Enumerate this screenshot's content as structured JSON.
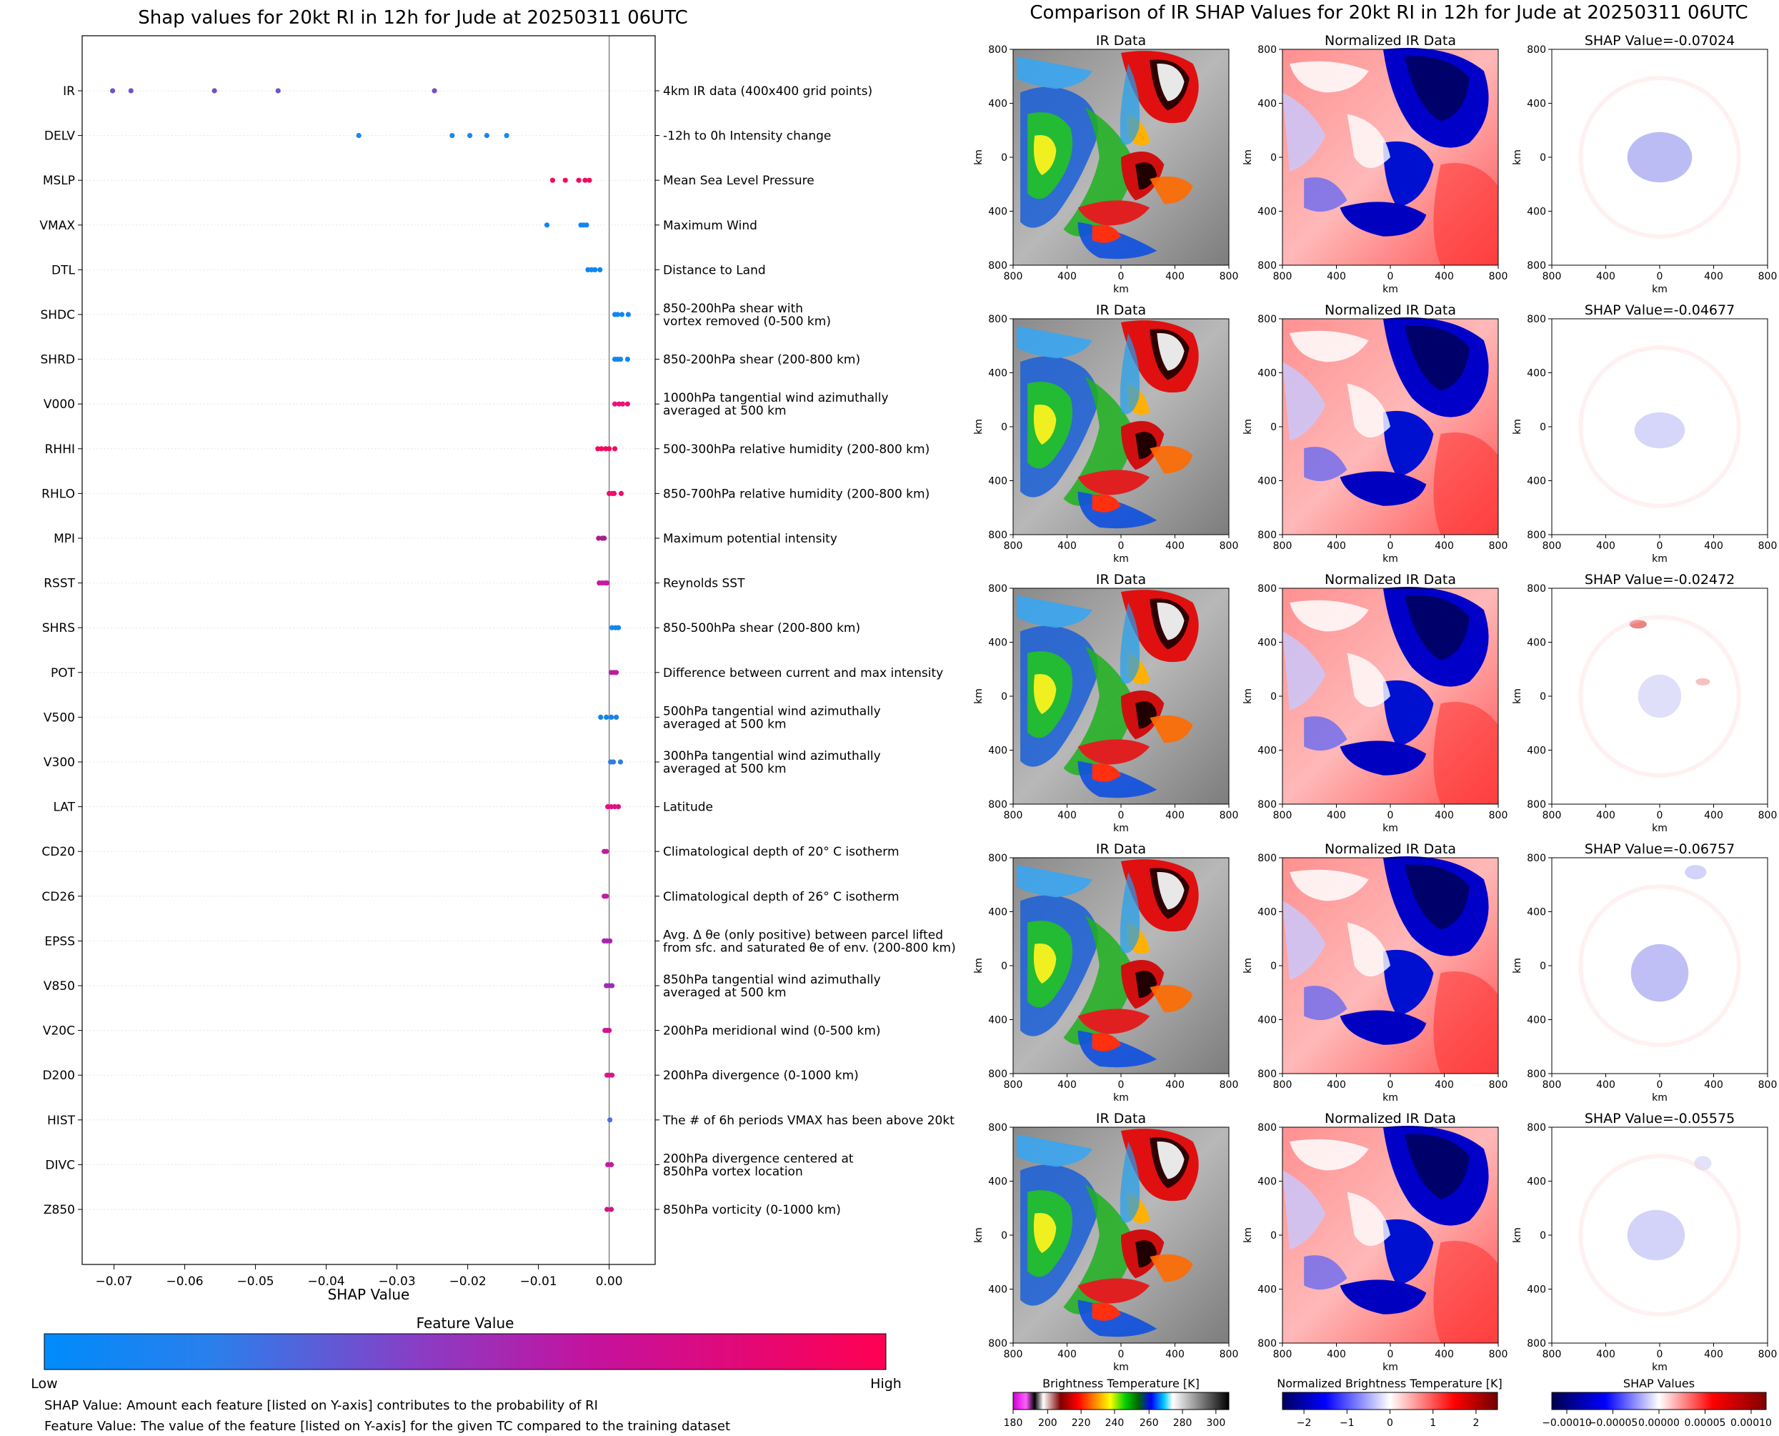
{
  "left_title": "Shap values for 20kt RI in 12h for Jude at 20250311 06UTC",
  "right_title": "Comparison of IR SHAP Values for 20kt RI in 12h for Jude at 20250311 06UTC",
  "colorbar": {
    "title": "Feature Value",
    "low_label": "Low",
    "high_label": "High",
    "low_color": "#008bfb",
    "high_color": "#ff0052"
  },
  "notes": [
    "SHAP Value: Amount each feature [listed on Y-axis] contributes to the probability of RI",
    "Feature Value: The value of the feature [listed on Y-axis] for the given TC compared to the training dataset"
  ],
  "panel_titles": [
    "IR Data",
    "Normalized IR Data"
  ],
  "panel_axis_label": "km",
  "panel_x_ticks": [
    "800",
    "400",
    "0",
    "400",
    "800"
  ],
  "panel_y_ticks": [
    "800",
    "400",
    "0",
    "400",
    "800"
  ],
  "shap_row_titles": [
    "SHAP Value=-0.07024",
    "SHAP Value=-0.04677",
    "SHAP Value=-0.02472",
    "SHAP Value=-0.06757",
    "SHAP Value=-0.05575"
  ],
  "bottom_colorbars": [
    {
      "title": "Brightness Temperature [K]",
      "ticks": [
        "180",
        "200",
        "220",
        "240",
        "260",
        "280",
        "300"
      ]
    },
    {
      "title": "Normalized Brightness Temperature [K]",
      "ticks": [
        "−2",
        "−1",
        "0",
        "1",
        "2"
      ]
    },
    {
      "title": "SHAP Values",
      "ticks": [
        "−0.00010",
        "−0.00005",
        "0.00000",
        "0.00005",
        "0.00010"
      ]
    }
  ],
  "chart_data": {
    "type": "scatter",
    "title": "Shap values for 20kt RI in 12h for Jude at 20250311 06UTC",
    "xlabel": "SHAP Value",
    "xlim": [
      -0.0745,
      0.0065
    ],
    "x_ticks": [
      "−0.07",
      "−0.06",
      "−0.05",
      "−0.04",
      "−0.03",
      "−0.02",
      "−0.01",
      "0.00"
    ],
    "x_tick_values": [
      -0.07,
      -0.06,
      -0.05,
      -0.04,
      -0.03,
      -0.02,
      -0.01,
      0.0
    ],
    "features": [
      {
        "name": "IR",
        "desc": [
          "4km IR data (400x400 grid points)"
        ],
        "values": [
          -0.0702,
          -0.0676,
          -0.0558,
          -0.0468,
          -0.0247
        ],
        "color": "#7250c8"
      },
      {
        "name": "DELV",
        "desc": [
          "-12h to 0h Intensity change"
        ],
        "values": [
          -0.0354,
          -0.0222,
          -0.0197,
          -0.0173,
          -0.0145
        ],
        "color": "#1d87eb"
      },
      {
        "name": "MSLP",
        "desc": [
          "Mean Sea Level Pressure"
        ],
        "values": [
          -0.008,
          -0.0062,
          -0.0043,
          -0.0034,
          -0.0028
        ],
        "color": "#f30a60"
      },
      {
        "name": "VMAX",
        "desc": [
          "Maximum Wind"
        ],
        "values": [
          -0.0088,
          -0.004,
          -0.0036,
          -0.0032
        ],
        "color": "#1086f1"
      },
      {
        "name": "DTL",
        "desc": [
          "Distance to Land"
        ],
        "values": [
          -0.003,
          -0.0025,
          -0.002,
          -0.0013
        ],
        "color": "#1086f1"
      },
      {
        "name": "SHDC",
        "desc": [
          "850-200hPa shear with",
          "vortex removed (0-500 km)"
        ],
        "values": [
          0.0008,
          0.0012,
          0.0018,
          0.0027
        ],
        "color": "#1086f1"
      },
      {
        "name": "SHRD",
        "desc": [
          "850-200hPa shear (200-800 km)"
        ],
        "values": [
          0.0008,
          0.0012,
          0.0016,
          0.0026
        ],
        "color": "#1086f1"
      },
      {
        "name": "V000",
        "desc": [
          "1000hPa tangential wind azimuthally",
          "averaged at 500 km"
        ],
        "values": [
          0.0008,
          0.0014,
          0.0019,
          0.0026
        ],
        "color": "#e9127a"
      },
      {
        "name": "RHHI",
        "desc": [
          "500-300hPa relative humidity (200-800 km)"
        ],
        "values": [
          -0.0016,
          -0.0011,
          -0.0005,
          0.0,
          0.0008
        ],
        "color": "#f30a60"
      },
      {
        "name": "RHLO",
        "desc": [
          "850-700hPa relative humidity (200-800 km)"
        ],
        "values": [
          0.0,
          0.0004,
          0.0007,
          0.0017
        ],
        "color": "#ee0e6c"
      },
      {
        "name": "MPI",
        "desc": [
          "Maximum potential intensity"
        ],
        "values": [
          -0.0015,
          -0.001,
          -0.0007
        ],
        "color": "#a7208a"
      },
      {
        "name": "RSST",
        "desc": [
          "Reynolds SST"
        ],
        "values": [
          -0.0014,
          -0.001,
          -0.0006,
          -0.0003
        ],
        "color": "#c7199e"
      },
      {
        "name": "SHRS",
        "desc": [
          "850-500hPa shear (200-800 km)"
        ],
        "values": [
          0.0004,
          0.0009,
          0.0013
        ],
        "color": "#1086f1"
      },
      {
        "name": "POT",
        "desc": [
          "Difference between current and max intensity"
        ],
        "values": [
          0.0003,
          0.0007,
          0.001
        ],
        "color": "#b91ea0"
      },
      {
        "name": "V500",
        "desc": [
          "500hPa tangential wind azimuthally",
          "averaged at 500 km"
        ],
        "values": [
          -0.0012,
          -0.0004,
          0.0003,
          0.001
        ],
        "color": "#1583e6"
      },
      {
        "name": "V300",
        "desc": [
          "300hPa tangential wind azimuthally",
          "averaged at 500 km"
        ],
        "values": [
          0.0002,
          0.0006,
          0.0016
        ],
        "color": "#2d7ee2"
      },
      {
        "name": "LAT",
        "desc": [
          "Latitude"
        ],
        "values": [
          -0.0002,
          0.0003,
          0.0008,
          0.0013
        ],
        "color": "#e0127f"
      },
      {
        "name": "CD20",
        "desc": [
          "Climatological depth of 20° C isotherm"
        ],
        "values": [
          -0.0007,
          -0.0004
        ],
        "color": "#c21c9d"
      },
      {
        "name": "CD26",
        "desc": [
          "Climatological depth of 26° C isotherm"
        ],
        "values": [
          -0.0007,
          -0.0004
        ],
        "color": "#c21c9d"
      },
      {
        "name": "EPSS",
        "desc": [
          "Avg. Δ θe (only positive) between parcel lifted",
          "from sfc. and saturated θe of env. (200-800 km)"
        ],
        "values": [
          -0.0007,
          -0.0003,
          0.0001
        ],
        "color": "#a826ae"
      },
      {
        "name": "V850",
        "desc": [
          "850hPa tangential wind azimuthally",
          "averaged at 500 km"
        ],
        "values": [
          -0.0004,
          0.0,
          0.0004
        ],
        "color": "#9a2bb8"
      },
      {
        "name": "V20C",
        "desc": [
          "200hPa meridional wind (0-500 km)"
        ],
        "values": [
          -0.0006,
          -0.0003,
          0.0
        ],
        "color": "#d0168c"
      },
      {
        "name": "D200",
        "desc": [
          "200hPa divergence (0-1000 km)"
        ],
        "values": [
          -0.0003,
          0.0,
          0.0004
        ],
        "color": "#d8168a"
      },
      {
        "name": "HIST",
        "desc": [
          "The # of 6h periods VMAX has been above 20kt"
        ],
        "values": [
          0.0001
        ],
        "color": "#4f70dc"
      },
      {
        "name": "DIVC",
        "desc": [
          "200hPa divergence centered at",
          "850hPa vortex location"
        ],
        "values": [
          -0.0002,
          0.0003
        ],
        "color": "#c21c9d"
      },
      {
        "name": "Z850",
        "desc": [
          "850hPa vorticity (0-1000 km)"
        ],
        "values": [
          -0.0003,
          0.0003
        ],
        "color": "#d0168c"
      }
    ]
  }
}
